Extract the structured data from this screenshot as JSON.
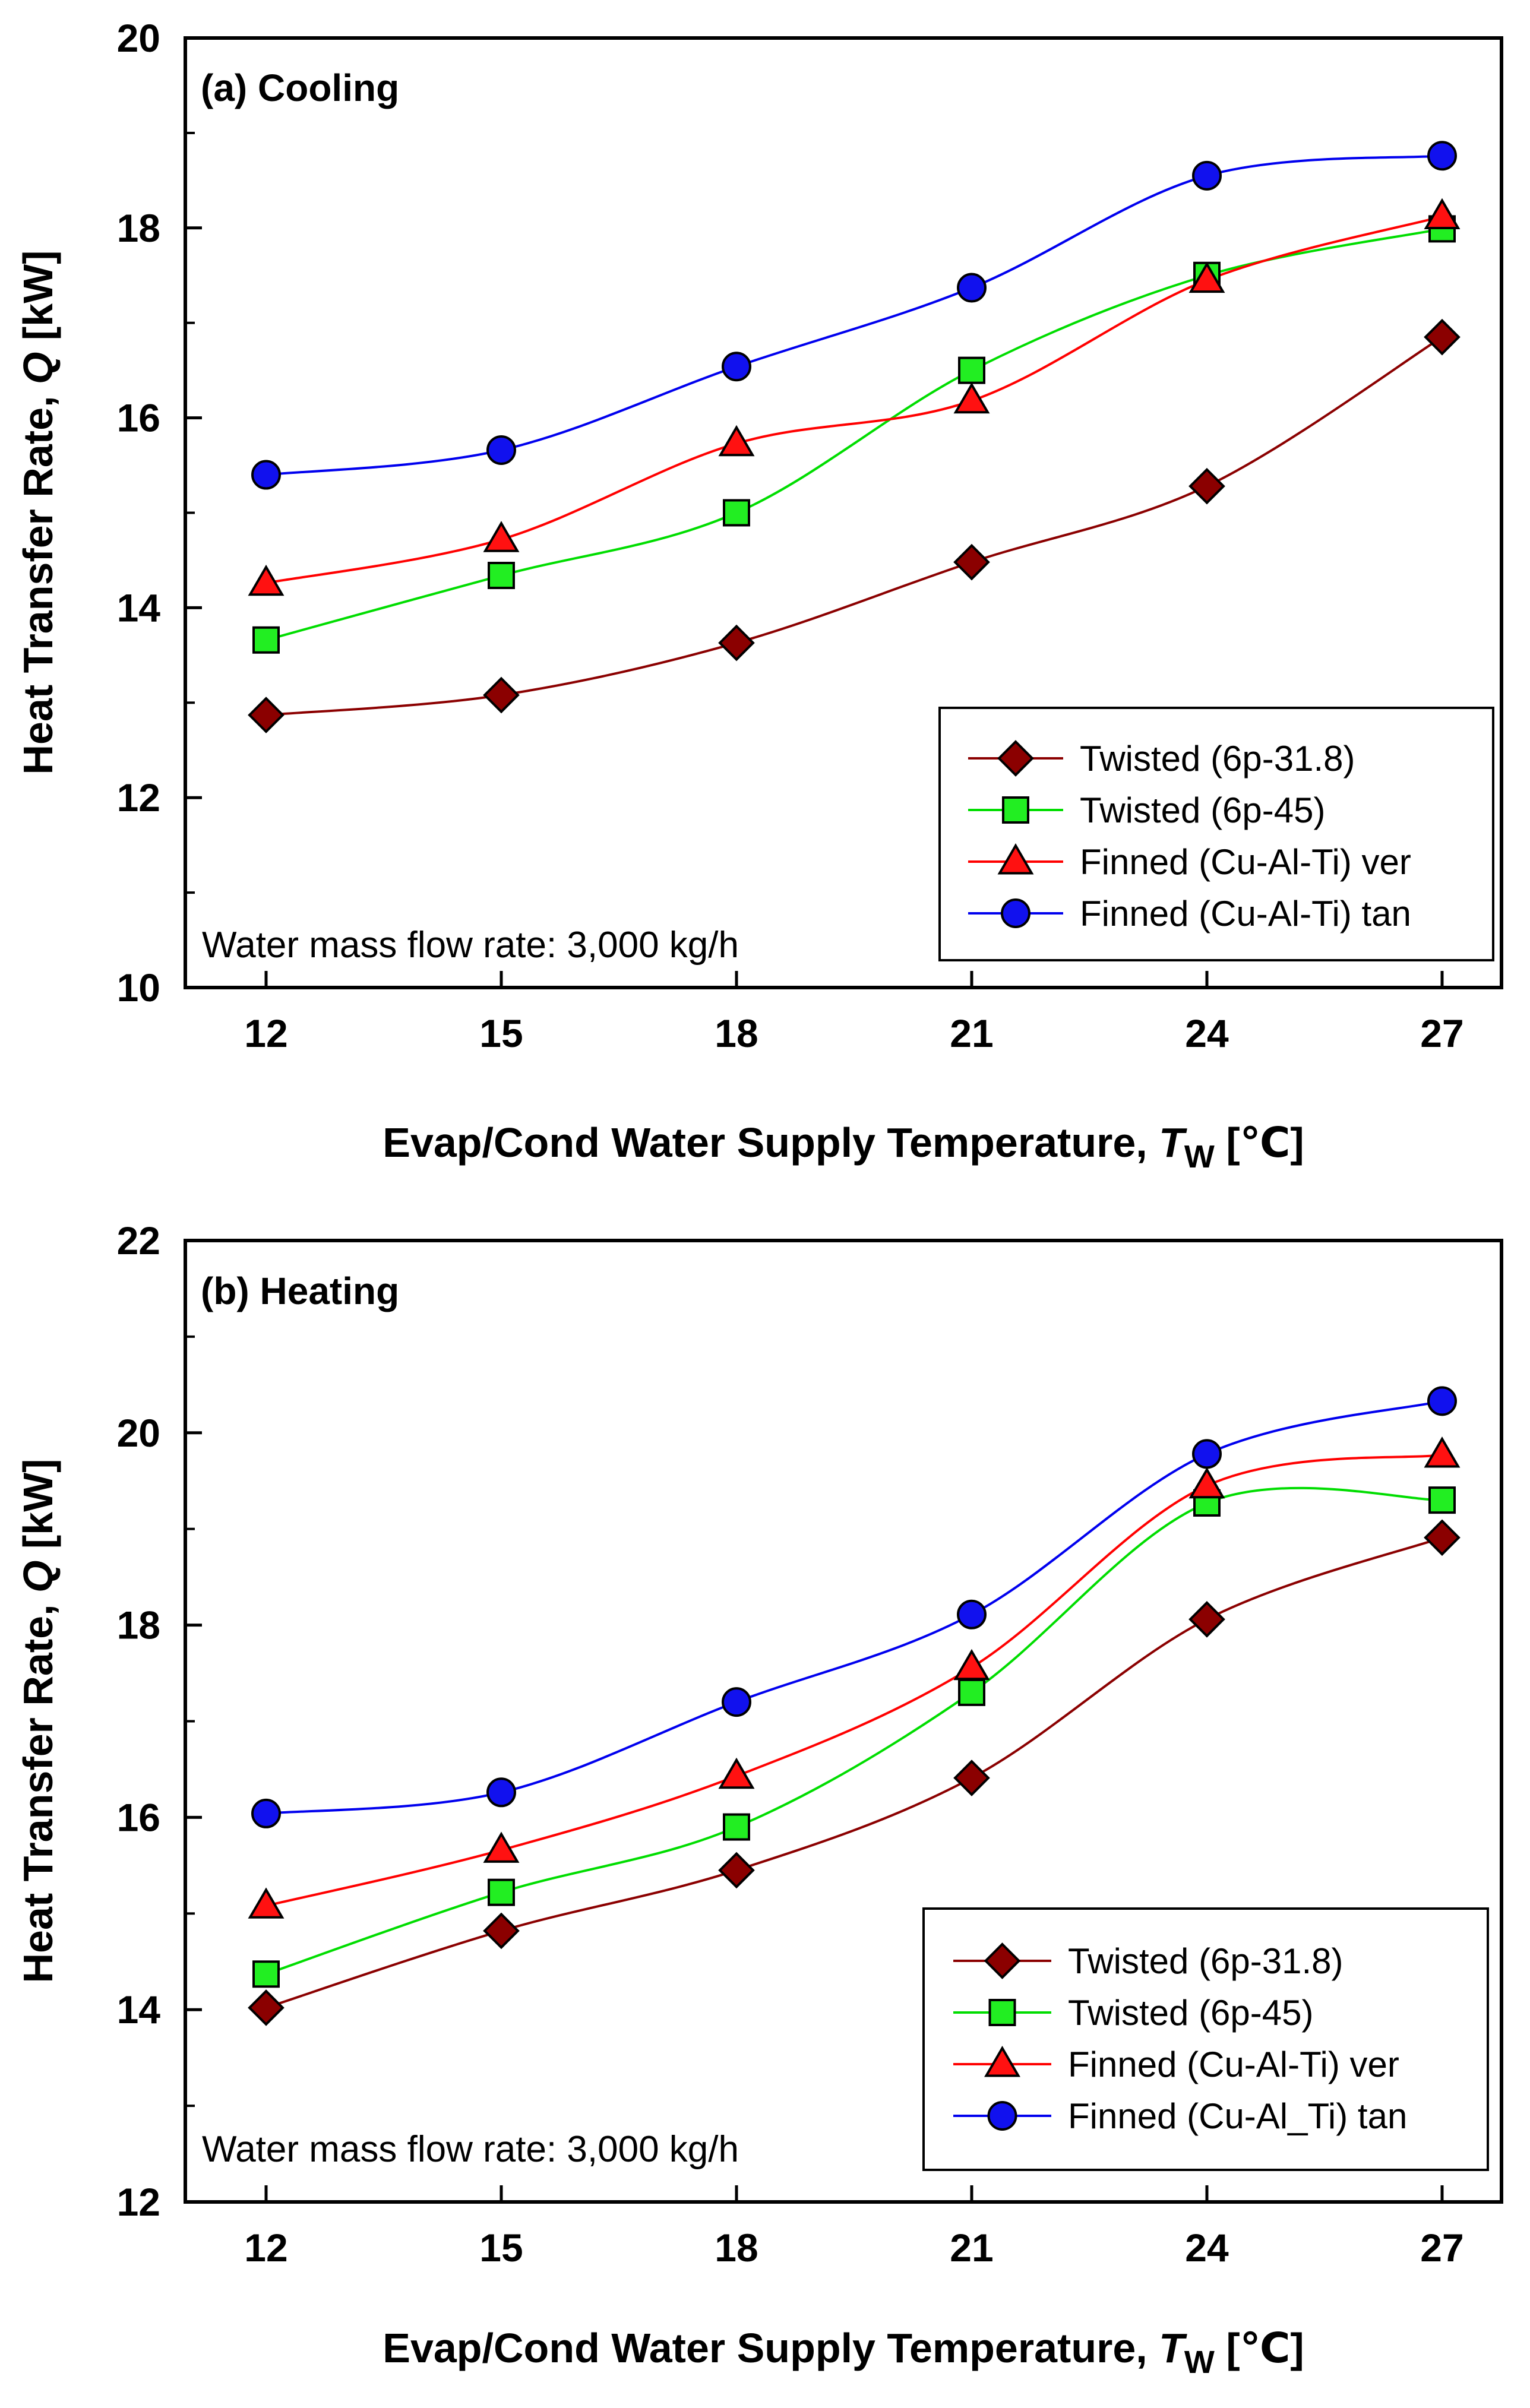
{
  "chart_data": [
    {
      "type": "line",
      "title": "(a) Cooling",
      "xlabel_main": "Evap/Cond Water Supply Temperature, ",
      "xlabel_var": "T",
      "xlabel_sub": "W",
      "xlabel_unit": " [℃]",
      "ylabel_main": "Heat Transfer Rate, ",
      "ylabel_var": "Q",
      "ylabel_unit": " [kW]",
      "note": "Water mass flow rate: 3,000 kg/h",
      "categories": [
        "12",
        "15",
        "18",
        "21",
        "24",
        "27"
      ],
      "y_ticks": [
        "10",
        "12",
        "14",
        "16",
        "18",
        "20"
      ],
      "ylim": [
        10,
        20
      ],
      "legend_position": "bottom-right",
      "series": [
        {
          "name": "Twisted (6p-31.8)",
          "marker": "diamond",
          "fill": "#8B0000",
          "line": "#8B0000",
          "values": [
            12.87,
            13.08,
            13.63,
            14.48,
            15.28,
            16.85
          ]
        },
        {
          "name": "Twisted (6p-45)",
          "marker": "square",
          "fill": "#22EE22",
          "line": "#00DD00",
          "values": [
            13.66,
            14.34,
            15.0,
            16.5,
            17.5,
            17.99
          ]
        },
        {
          "name": "Finned (Cu-Al-Ti) ver",
          "marker": "triangle",
          "fill": "#FF1111",
          "line": "#FF0000",
          "values": [
            14.26,
            14.72,
            15.73,
            16.18,
            17.45,
            18.12
          ]
        },
        {
          "name": "Finned (Cu-Al-Ti) tan",
          "marker": "circle",
          "fill": "#1111EE",
          "line": "#0000EE",
          "values": [
            15.4,
            15.66,
            16.54,
            17.37,
            18.55,
            18.76
          ]
        }
      ]
    },
    {
      "type": "line",
      "title": "(b) Heating",
      "xlabel_main": "Evap/Cond Water Supply Temperature, ",
      "xlabel_var": "T",
      "xlabel_sub": "W",
      "xlabel_unit": " [℃]",
      "ylabel_main": "Heat Transfer Rate, ",
      "ylabel_var": "Q",
      "ylabel_unit": " [kW]",
      "note": "Water mass flow rate: 3,000 kg/h",
      "categories": [
        "12",
        "15",
        "18",
        "21",
        "24",
        "27"
      ],
      "y_ticks": [
        "12",
        "14",
        "16",
        "18",
        "20",
        "22"
      ],
      "ylim": [
        12,
        22
      ],
      "legend_position": "bottom-right",
      "series": [
        {
          "name": "Twisted (6p-31.8)",
          "marker": "diamond",
          "fill": "#8B0000",
          "line": "#8B0000",
          "values": [
            14.02,
            14.82,
            15.45,
            16.41,
            18.06,
            18.91
          ]
        },
        {
          "name": "Twisted (6p-45)",
          "marker": "square",
          "fill": "#22EE22",
          "line": "#00DD00",
          "values": [
            14.37,
            15.22,
            15.9,
            17.3,
            19.27,
            19.3
          ]
        },
        {
          "name": "Finned (Cu-Al-Ti) ver",
          "marker": "triangle",
          "fill": "#FF1111",
          "line": "#FF0000",
          "values": [
            15.08,
            15.66,
            16.43,
            17.56,
            19.45,
            19.77
          ]
        },
        {
          "name": "Finned (Cu-Al_Ti) tan",
          "marker": "circle",
          "fill": "#1111EE",
          "line": "#0000EE",
          "values": [
            16.04,
            16.26,
            17.2,
            18.11,
            19.78,
            20.33
          ]
        }
      ]
    }
  ]
}
